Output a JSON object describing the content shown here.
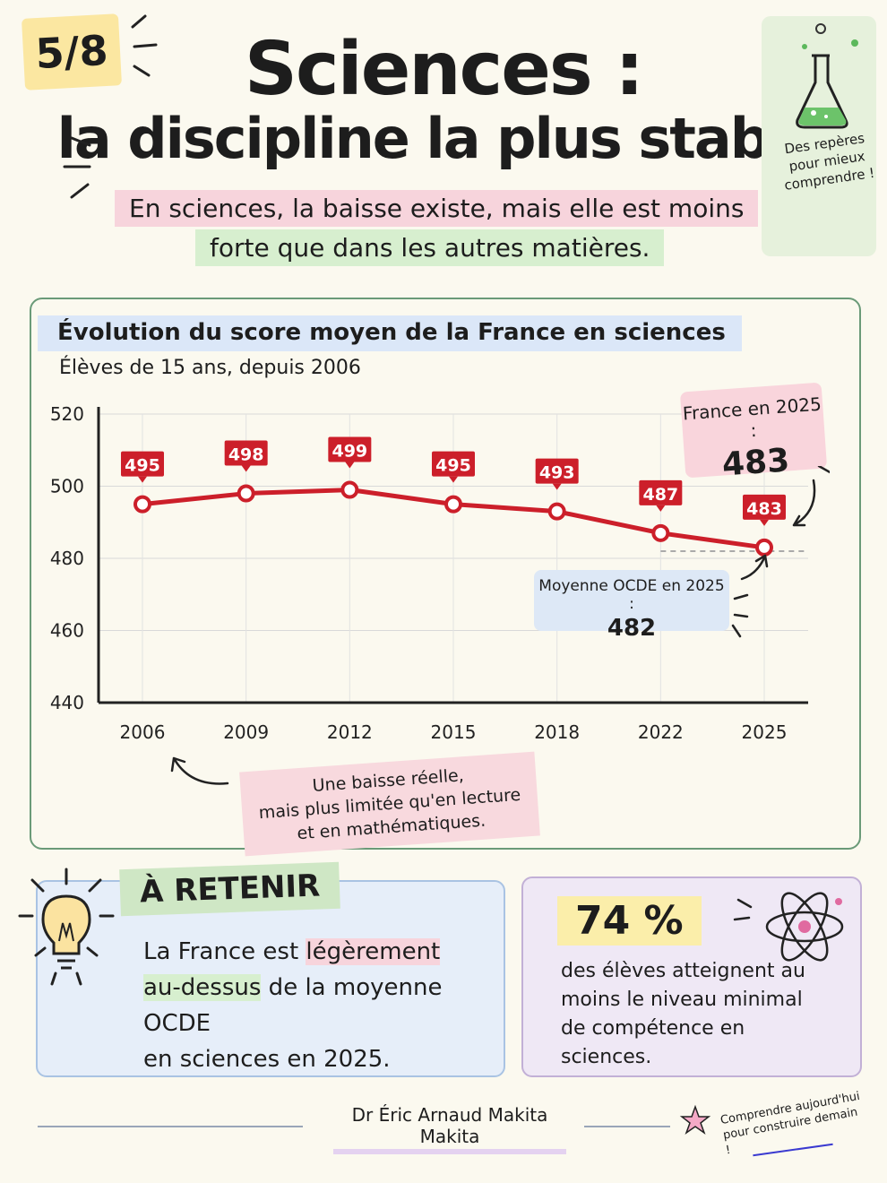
{
  "header": {
    "page_badge": "5/8",
    "title_line1": "Sciences :",
    "title_line2": "la discipline la plus stable",
    "subtitle_line1": "En sciences, la baisse existe, mais elle est moins",
    "subtitle_line2": "forte que dans les autres matières."
  },
  "side_note": {
    "text": "Des repères pour mieux comprendre !",
    "icon": "flask-icon"
  },
  "chart_data": {
    "type": "line",
    "title": "Évolution du score moyen de la France en sciences",
    "subtitle": "Élèves de 15 ans, depuis 2006",
    "categories": [
      "2006",
      "2009",
      "2012",
      "2015",
      "2018",
      "2022",
      "2025"
    ],
    "series": [
      {
        "values": [
          495,
          498,
          499,
          495,
          493,
          487,
          483
        ],
        "color": "#cc1f2a"
      }
    ],
    "data_labels": [
      "495",
      "498",
      "499",
      "495",
      "493",
      "487",
      "483"
    ],
    "y_ticks": [
      440,
      460,
      480,
      500,
      520
    ],
    "ylim": [
      440,
      520
    ],
    "reference_line": {
      "value": 482,
      "color": "#aaaaaa",
      "style": "dashed"
    },
    "grid": true,
    "annotations": {
      "france_label": "France en 2025 :",
      "france_value": "483",
      "oecd_label": "Moyenne OCDE en 2025 :",
      "oecd_value": "482"
    }
  },
  "note": {
    "line1": "Une baisse réelle,",
    "line2": "mais plus limitée qu'en lecture",
    "line3": "et en mathématiques."
  },
  "retenir": {
    "heading": "À RETENIR",
    "part1": "La France est ",
    "highlight1": "légèrement",
    "highlight2": "au-dessus",
    "part2": " de la moyenne OCDE",
    "part3": "en sciences en 2025."
  },
  "stat": {
    "value": "74 %",
    "text": "des élèves atteignent au moins le niveau minimal de compétence en sciences."
  },
  "footer": {
    "author": "Dr Éric Arnaud Makita Makita",
    "motto": "Comprendre aujourd'hui pour construire demain !"
  },
  "colors": {
    "accent_red": "#cc1f2a",
    "pink": "#f7d4dc",
    "green": "#d7efcf",
    "blue": "#dbe7f8",
    "yellow": "#fbeeaa"
  }
}
